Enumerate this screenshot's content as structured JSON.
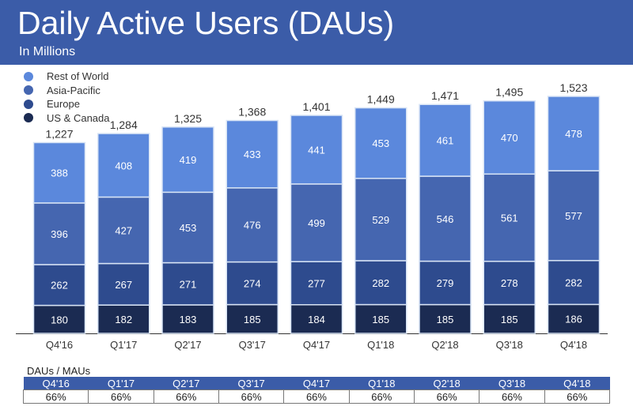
{
  "header": {
    "title": "Daily Active Users (DAUs)",
    "subtitle": "In Millions"
  },
  "chart_data": {
    "type": "bar",
    "stacked": true,
    "title": "Daily Active Users (DAUs)",
    "subtitle": "In Millions",
    "categories": [
      "Q4'16",
      "Q1'17",
      "Q2'17",
      "Q3'17",
      "Q4'17",
      "Q1'18",
      "Q2'18",
      "Q3'18",
      "Q4'18"
    ],
    "totals": [
      "1,227",
      "1,284",
      "1,325",
      "1,368",
      "1,401",
      "1,449",
      "1,471",
      "1,495",
      "1,523"
    ],
    "series": [
      {
        "name": "US & Canada",
        "color": "#1b2b52",
        "values": [
          180,
          182,
          183,
          185,
          184,
          185,
          185,
          185,
          186
        ]
      },
      {
        "name": "Europe",
        "color": "#2e4b8e",
        "values": [
          262,
          267,
          271,
          274,
          277,
          282,
          279,
          278,
          282
        ]
      },
      {
        "name": "Asia-Pacific",
        "color": "#4566b0",
        "values": [
          396,
          427,
          453,
          476,
          499,
          529,
          546,
          561,
          577
        ]
      },
      {
        "name": "Rest of World",
        "color": "#5b88dc",
        "values": [
          388,
          408,
          419,
          433,
          441,
          453,
          461,
          470,
          478
        ]
      }
    ],
    "legend": {
      "placement": "top-left",
      "order": [
        "Rest of World",
        "Asia-Pacific",
        "Europe",
        "US & Canada"
      ]
    },
    "grid": false
  },
  "table": {
    "label": "DAUs / MAUs",
    "headers": [
      "Q4'16",
      "Q1'17",
      "Q2'17",
      "Q3'17",
      "Q4'17",
      "Q1'18",
      "Q2'18",
      "Q3'18",
      "Q4'18"
    ],
    "values": [
      "66%",
      "66%",
      "66%",
      "66%",
      "66%",
      "66%",
      "66%",
      "66%",
      "66%"
    ]
  }
}
